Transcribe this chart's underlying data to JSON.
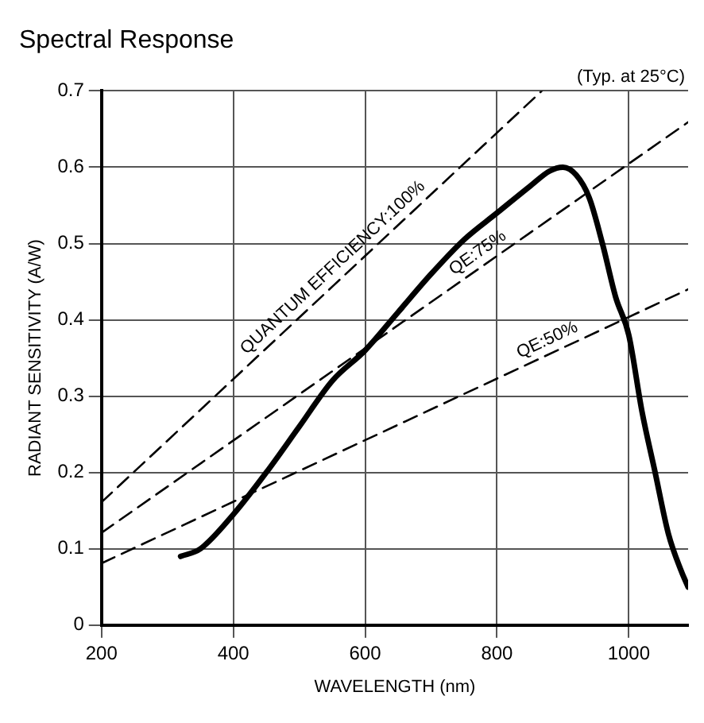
{
  "chart_data": {
    "type": "line",
    "title": "Spectral Response",
    "xlabel": "WAVELENGTH (nm)",
    "ylabel": "RADIANT SENSITIVITY (A/W)",
    "annotations": [
      "(Typ. at 25°C)"
    ],
    "xlim": [
      200,
      1090
    ],
    "ylim": [
      0,
      0.7
    ],
    "xticks": [
      200,
      400,
      600,
      800,
      1000
    ],
    "yticks": [
      0,
      0.1,
      0.2,
      0.3,
      0.4,
      0.5,
      0.6,
      0.7
    ],
    "grid": true,
    "legend": false,
    "marker": "none",
    "series": [
      {
        "color": "#000000",
        "line_style": "solid",
        "x": [
          320,
          350,
          400,
          450,
          500,
          550,
          600,
          650,
          700,
          750,
          800,
          850,
          880,
          900,
          920,
          940,
          960,
          980,
          1000,
          1020,
          1040,
          1060,
          1080,
          1090
        ],
        "values": [
          0.09,
          0.1,
          0.145,
          0.2,
          0.26,
          0.32,
          0.36,
          0.41,
          0.46,
          0.505,
          0.54,
          0.575,
          0.595,
          0.6,
          0.59,
          0.56,
          0.5,
          0.43,
          0.38,
          0.28,
          0.2,
          0.12,
          0.07,
          0.05
        ]
      },
      {
        "name": "QUANTUM EFFICIENCY:100%",
        "color": "#000000",
        "line_style": "dashed",
        "x": [
          200,
          868
        ],
        "values": [
          0.161,
          0.7
        ]
      },
      {
        "name": "QE:75%",
        "color": "#000000",
        "line_style": "dashed",
        "x": [
          200,
          1090
        ],
        "values": [
          0.121,
          0.659
        ]
      },
      {
        "name": "QE:50%",
        "color": "#000000",
        "line_style": "dashed",
        "x": [
          200,
          1090
        ],
        "values": [
          0.081,
          0.44
        ]
      }
    ]
  }
}
